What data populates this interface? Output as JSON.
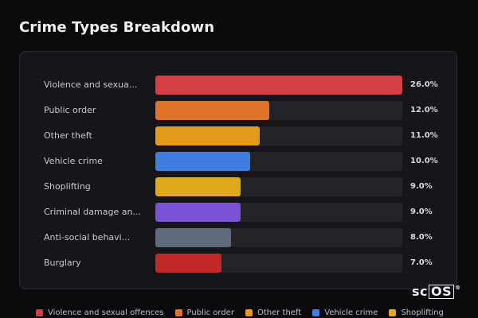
{
  "page": {
    "title": "Crime Types Breakdown"
  },
  "chart_data": {
    "type": "bar",
    "orientation": "horizontal",
    "categories": [
      "Violence and sexua...",
      "Public order",
      "Other theft",
      "Vehicle crime",
      "Shoplifting",
      "Criminal damage an...",
      "Anti-social behavi...",
      "Burglary"
    ],
    "values": [
      26.0,
      12.0,
      11.0,
      10.0,
      9.0,
      9.0,
      8.0,
      7.0
    ],
    "value_labels": [
      "26.0%",
      "12.0%",
      "11.0%",
      "10.0%",
      "9.0%",
      "9.0%",
      "8.0%",
      "7.0%"
    ],
    "colors": [
      "#d43f45",
      "#e0732a",
      "#e69a1c",
      "#3f7ee0",
      "#e0a91a",
      "#7a52d4",
      "#5f6b7d",
      "#c0282a"
    ],
    "xlim": [
      0,
      26.0
    ],
    "grid": false,
    "legend_position": "bottom"
  },
  "legend": {
    "items": [
      {
        "label": "Violence and sexual offences",
        "color": "#d43f45"
      },
      {
        "label": "Public order",
        "color": "#e0732a"
      },
      {
        "label": "Other theft",
        "color": "#e69a1c"
      },
      {
        "label": "Vehicle crime",
        "color": "#3f7ee0"
      },
      {
        "label": "Shoplifting",
        "color": "#e0a91a"
      }
    ]
  },
  "watermark": {
    "text_prefix": "sc",
    "text_boxed": "OS",
    "registered": "®"
  }
}
